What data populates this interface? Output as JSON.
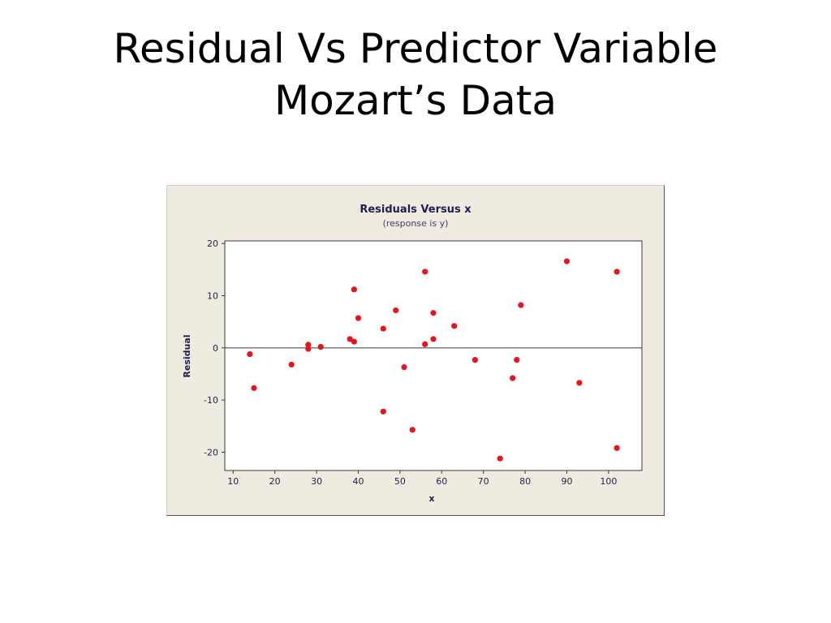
{
  "slide": {
    "title_line1": "Residual Vs Predictor Variable",
    "title_line2": "Mozart’s Data"
  },
  "colors": {
    "frame_background": "#efebe1",
    "plot_background": "#ffffff",
    "point": "#e8141c",
    "text": "#1f1f4d"
  },
  "chart_data": {
    "type": "scatter",
    "title": "Residuals Versus x",
    "subtitle": "(response is y)",
    "xlabel": "x",
    "ylabel": "Residual",
    "xlim": [
      8,
      108
    ],
    "ylim": [
      -23.5,
      20.5
    ],
    "xticks": [
      10,
      20,
      30,
      40,
      50,
      60,
      70,
      80,
      90,
      100
    ],
    "yticks": [
      20,
      10,
      0,
      -10,
      -20
    ],
    "reference_line_y": 0,
    "grid": false,
    "legend": "none",
    "points": [
      {
        "x": 14,
        "y": -1.2
      },
      {
        "x": 15,
        "y": -7.7
      },
      {
        "x": 24,
        "y": -3.2
      },
      {
        "x": 28,
        "y": 0.6
      },
      {
        "x": 28,
        "y": -0.2
      },
      {
        "x": 31,
        "y": 0.2
      },
      {
        "x": 38,
        "y": 1.7
      },
      {
        "x": 39,
        "y": 1.2
      },
      {
        "x": 39,
        "y": 11.2
      },
      {
        "x": 40,
        "y": 5.7
      },
      {
        "x": 46,
        "y": 3.7
      },
      {
        "x": 46,
        "y": -12.2
      },
      {
        "x": 49,
        "y": 7.2
      },
      {
        "x": 51,
        "y": -3.7
      },
      {
        "x": 53,
        "y": -15.7
      },
      {
        "x": 56,
        "y": 14.6
      },
      {
        "x": 56,
        "y": 0.7
      },
      {
        "x": 58,
        "y": 6.7
      },
      {
        "x": 58,
        "y": 1.7
      },
      {
        "x": 63,
        "y": 4.2
      },
      {
        "x": 68,
        "y": -2.3
      },
      {
        "x": 74,
        "y": -21.2
      },
      {
        "x": 77,
        "y": -5.8
      },
      {
        "x": 78,
        "y": -2.3
      },
      {
        "x": 79,
        "y": 8.2
      },
      {
        "x": 90,
        "y": 16.6
      },
      {
        "x": 93,
        "y": -6.7
      },
      {
        "x": 102,
        "y": 14.6
      },
      {
        "x": 102,
        "y": -19.2
      }
    ]
  }
}
